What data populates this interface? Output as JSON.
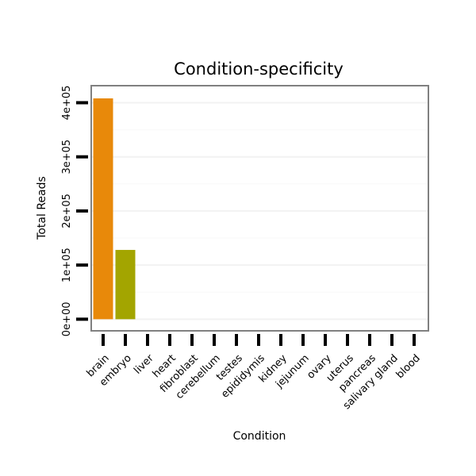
{
  "chart_data": {
    "type": "bar",
    "title": "Condition-specificity",
    "xlabel": "Condition",
    "ylabel": "Total Reads",
    "categories": [
      "brain",
      "embryo",
      "liver",
      "heart",
      "fibroblast",
      "cerebellum",
      "testes",
      "epididymis",
      "kidney",
      "jejunum",
      "ovary",
      "uterus",
      "pancreas",
      "salivary gland",
      "blood"
    ],
    "values": [
      408000,
      128000,
      0,
      0,
      0,
      0,
      0,
      0,
      0,
      0,
      0,
      0,
      0,
      0,
      0
    ],
    "ylim": [
      -20000,
      430000
    ],
    "yticks": [
      0,
      100000,
      200000,
      300000,
      400000
    ],
    "ytick_labels": [
      "0e+00",
      "1e+05",
      "2e+05",
      "3e+05",
      "4e+05"
    ],
    "colors": [
      "#e8890a",
      "#a3a500"
    ],
    "grid": true,
    "legend": "none"
  }
}
